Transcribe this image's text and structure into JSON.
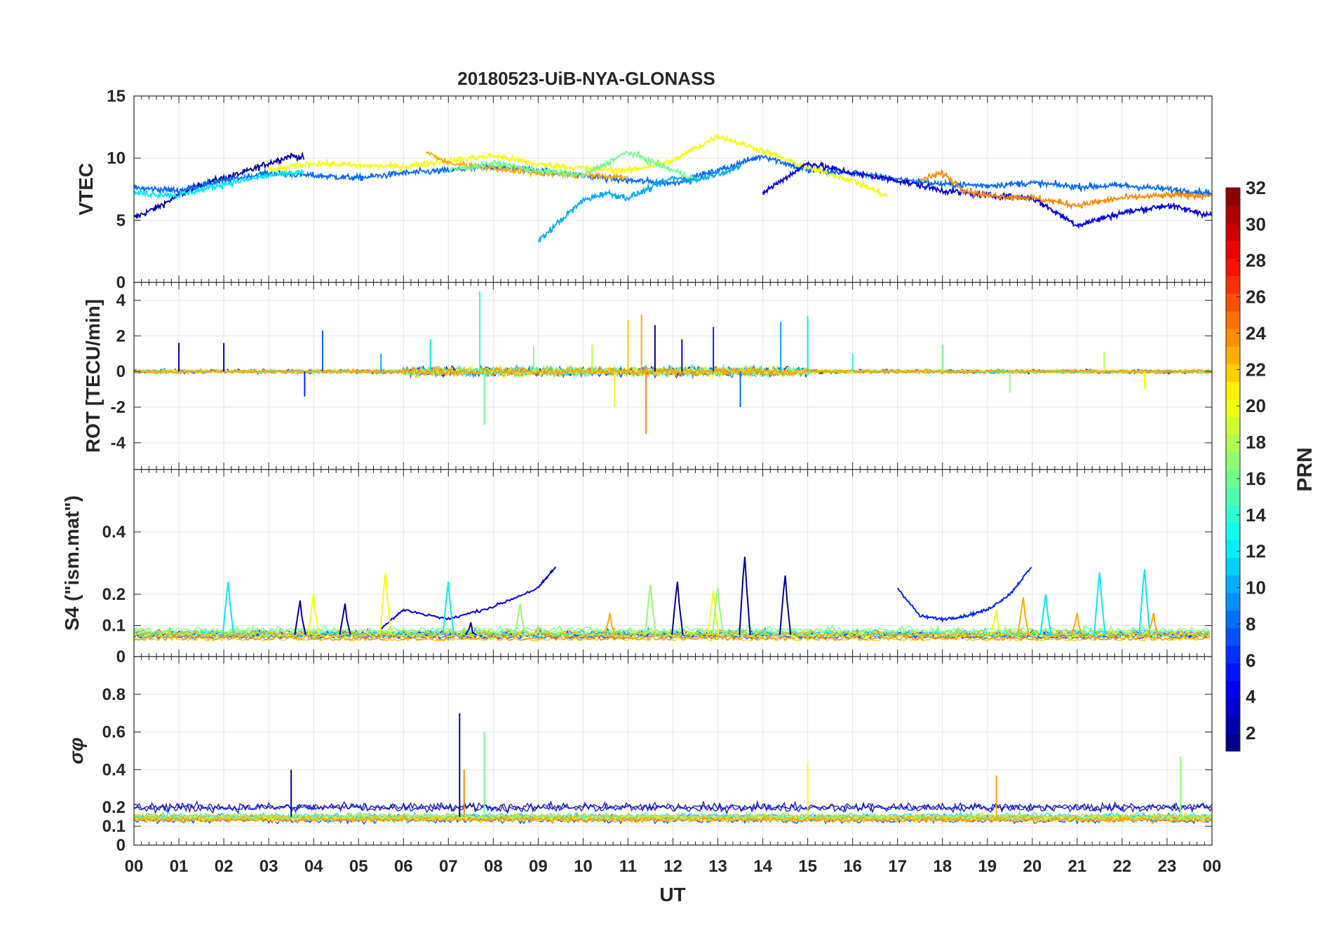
{
  "chart_data": {
    "title": "20180523-UiB-NYA-GLONASS",
    "type": "line",
    "xlabel": "UT",
    "x_tick_labels": [
      "00",
      "01",
      "02",
      "03",
      "04",
      "05",
      "06",
      "07",
      "08",
      "09",
      "10",
      "11",
      "12",
      "13",
      "14",
      "15",
      "16",
      "17",
      "18",
      "19",
      "20",
      "21",
      "22",
      "23",
      "00"
    ],
    "xlim": [
      0,
      24
    ],
    "panels": [
      {
        "id": "vtec",
        "ylabel": "VTEC",
        "ylim": [
          0,
          15
        ],
        "y_ticks": [
          0,
          5,
          10,
          15
        ],
        "y_tick_labels": [
          "0",
          "5",
          "10",
          "15"
        ],
        "series": [
          {
            "name": "PRN 2",
            "prn": 2,
            "x": [
              0,
              0.5,
              1,
              1.5,
              2,
              2.5,
              3,
              3.5,
              3.8
            ],
            "y": [
              5.2,
              6.0,
              7.0,
              7.9,
              8.4,
              8.9,
              9.6,
              10.2,
              10.0
            ]
          },
          {
            "name": "PRN 8",
            "prn": 8,
            "x": [
              0,
              1,
              2,
              3,
              4,
              5,
              6,
              7,
              8,
              9,
              10,
              11,
              12,
              13,
              14,
              15,
              16,
              17,
              18,
              19,
              20,
              21,
              22,
              23,
              24
            ],
            "y": [
              7.6,
              7.4,
              8.2,
              8.8,
              8.6,
              8.4,
              8.8,
              9.0,
              9.3,
              9.0,
              8.6,
              8.2,
              8.0,
              9.0,
              10.2,
              9.0,
              8.8,
              8.3,
              7.9,
              7.8,
              8.0,
              7.7,
              7.8,
              7.5,
              7.2
            ]
          },
          {
            "name": "PRN 12",
            "prn": 12,
            "x": [
              0,
              1,
              2,
              3,
              3.8
            ],
            "y": [
              7.2,
              7.0,
              7.9,
              8.6,
              8.9
            ]
          },
          {
            "name": "PRN 20",
            "prn": 20,
            "x": [
              3,
              4,
              5,
              6,
              7,
              8,
              9,
              10,
              11,
              12,
              13,
              14,
              15,
              16,
              16.8
            ],
            "y": [
              9.0,
              9.6,
              9.4,
              9.3,
              9.8,
              10.2,
              9.5,
              9.2,
              9.0,
              9.8,
              11.8,
              10.6,
              9.2,
              8.2,
              6.9
            ]
          },
          {
            "name": "PRN 23",
            "prn": 23,
            "x": [
              6.5,
              7,
              8,
              9,
              10,
              11
            ],
            "y": [
              10.5,
              9.6,
              9.2,
              8.8,
              8.6,
              8.5
            ]
          },
          {
            "name": "PRN 16",
            "prn": 16,
            "x": [
              7,
              8,
              9,
              10,
              11,
              12,
              12.6
            ],
            "y": [
              9.0,
              9.6,
              9.0,
              8.6,
              10.5,
              9.0,
              8.2
            ]
          },
          {
            "name": "PRN 10",
            "prn": 10,
            "x": [
              9.0,
              9.5,
              10,
              10.5,
              11,
              11.5,
              12,
              12.5,
              13,
              13.5
            ],
            "y": [
              3.3,
              5.0,
              6.6,
              7.2,
              6.8,
              7.6,
              8.4,
              8.2,
              8.8,
              9.2
            ]
          },
          {
            "name": "PRN 4",
            "prn": 4,
            "x": [
              14,
              15,
              16,
              17,
              18,
              19,
              20,
              21,
              22,
              23,
              24
            ],
            "y": [
              7.2,
              9.6,
              8.8,
              8.2,
              7.4,
              7.0,
              6.8,
              4.6,
              5.6,
              6.2,
              5.4
            ]
          },
          {
            "name": "PRN 24",
            "prn": 24,
            "x": [
              17.5,
              18,
              18.5,
              19,
              20,
              21,
              22,
              23,
              24
            ],
            "y": [
              8.2,
              8.8,
              7.4,
              7.0,
              6.8,
              6.2,
              6.8,
              7.0,
              7.0
            ]
          }
        ]
      },
      {
        "id": "rot",
        "ylabel": "ROT [TECU/min]",
        "ylim": [
          -5.5,
          5.0
        ],
        "y_ticks": [
          -4,
          -2,
          0,
          2,
          4
        ],
        "y_tick_labels": [
          "-4",
          "-2",
          "0",
          "2",
          "4"
        ],
        "series": [
          {
            "name": "ROT spikes",
            "x": [
              1.0,
              2.0,
              3.8,
              4.2,
              5.5,
              6.6,
              7.7,
              7.8,
              8.9,
              10.2,
              10.7,
              11.0,
              11.3,
              11.4,
              11.6,
              12.2,
              12.9,
              13.5,
              14.4,
              15.0,
              16.0,
              18.0,
              19.5,
              21.6,
              22.5
            ],
            "y": [
              1.6,
              1.6,
              -1.4,
              2.3,
              1.0,
              1.8,
              4.5,
              -3.0,
              1.4,
              1.5,
              -2.0,
              2.9,
              3.2,
              -3.5,
              2.6,
              1.8,
              2.5,
              -2.0,
              2.8,
              3.1,
              1.0,
              1.5,
              -1.2,
              1.1,
              -1.0
            ]
          }
        ]
      },
      {
        "id": "s4",
        "ylabel": "S4 (\"ism.mat\")",
        "ylim": [
          0,
          0.6
        ],
        "y_ticks": [
          0,
          0.1,
          0.2,
          0.4
        ],
        "y_tick_labels": [
          "0",
          "0.1",
          "0.2",
          "0.4"
        ],
        "series": [
          {
            "name": "PRN 4",
            "prn": 4,
            "x": [
              5.5,
              6,
              7,
              8,
              9,
              9.4
            ],
            "y": [
              0.09,
              0.15,
              0.12,
              0.16,
              0.22,
              0.29
            ]
          },
          {
            "name": "PRN 6",
            "prn": 6,
            "x": [
              17,
              17.5,
              18,
              18.5,
              19,
              19.5,
              20
            ],
            "y": [
              0.22,
              0.13,
              0.12,
              0.13,
              0.15,
              0.2,
              0.29
            ]
          },
          {
            "name": "PRN 2 peaks",
            "prn": 2,
            "x": [
              12.1,
              13.6,
              14.5,
              7.5,
              3.7,
              4.7
            ],
            "y": [
              0.24,
              0.32,
              0.26,
              0.11,
              0.18,
              0.17
            ]
          },
          {
            "name": "PRN 12 peaks",
            "prn": 12,
            "x": [
              2.1,
              7.0,
              21.5,
              22.5,
              20.3
            ],
            "y": [
              0.24,
              0.24,
              0.27,
              0.28,
              0.2
            ]
          },
          {
            "name": "PRN 20 peaks",
            "prn": 20,
            "x": [
              5.6,
              4.0,
              12.9,
              19.2
            ],
            "y": [
              0.27,
              0.2,
              0.21,
              0.15
            ]
          },
          {
            "name": "PRN 17 peaks",
            "prn": 17,
            "x": [
              11.5,
              13.0,
              8.6
            ],
            "y": [
              0.23,
              0.22,
              0.17
            ]
          },
          {
            "name": "PRN 23 peaks",
            "prn": 23,
            "x": [
              10.6,
              19.8,
              21.0,
              22.7
            ],
            "y": [
              0.14,
              0.19,
              0.14,
              0.14
            ]
          }
        ]
      },
      {
        "id": "sigma_phi",
        "ylabel": "σφ",
        "ylim": [
          0,
          1.0
        ],
        "y_ticks": [
          0,
          0.1,
          0.2,
          0.4,
          0.6,
          0.8
        ],
        "y_tick_labels": [
          "0",
          "0.1",
          "0.2",
          "0.4",
          "0.6",
          "0.8"
        ],
        "series": [
          {
            "name": "σφ spikes",
            "x": [
              7.25,
              7.35,
              7.8,
              15.0,
              19.2,
              23.3,
              3.5
            ],
            "y": [
              0.7,
              0.4,
              0.6,
              0.44,
              0.37,
              0.47,
              0.4
            ]
          }
        ]
      }
    ],
    "colorbar": {
      "label": "PRN",
      "range": [
        1,
        32
      ],
      "tick_labels": [
        "2",
        "4",
        "6",
        "8",
        "10",
        "12",
        "14",
        "16",
        "18",
        "20",
        "22",
        "24",
        "26",
        "28",
        "30",
        "32"
      ],
      "colormap": "jet"
    }
  }
}
